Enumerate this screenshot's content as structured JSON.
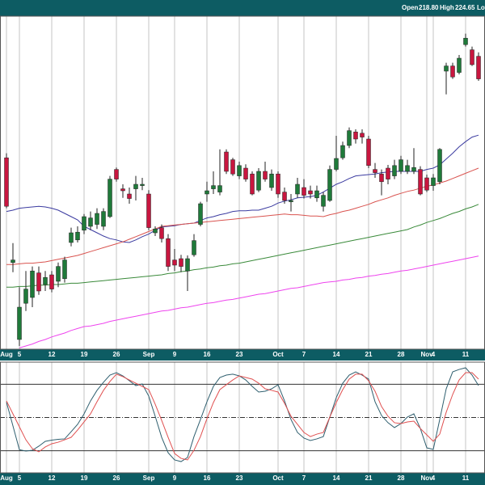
{
  "header": {
    "items": [
      {
        "label": "Open",
        "value": "218.80"
      },
      {
        "label": "High",
        "value": "224.65"
      },
      {
        "label": "Low"
      }
    ]
  },
  "chart_data": [
    {
      "type": "candlestick",
      "categories": [
        "Aug",
        null,
        "5",
        null,
        null,
        null,
        null,
        "12",
        null,
        null,
        null,
        null,
        "19",
        null,
        null,
        null,
        null,
        "26",
        null,
        null,
        null,
        null,
        "Sep",
        null,
        null,
        null,
        "9",
        null,
        null,
        null,
        null,
        "16",
        null,
        null,
        null,
        null,
        "23",
        null,
        null,
        null,
        null,
        null,
        "Oct",
        null,
        null,
        null,
        "7",
        null,
        null,
        null,
        null,
        "14",
        null,
        null,
        null,
        null,
        "21",
        null,
        null,
        null,
        null,
        "28",
        null,
        null,
        null,
        "Nov",
        "4",
        null,
        null,
        null,
        null,
        "11",
        null,
        null
      ],
      "open": [
        212.1,
        195.9,
        184.0,
        189.6,
        190.5,
        194.3,
        192.5,
        194.0,
        193.0,
        193.4,
        199.0,
        199.4,
        200.9,
        201.5,
        201.8,
        201.5,
        203.0,
        210.3,
        207.3,
        206.5,
        207.3,
        207.8,
        206.5,
        200.5,
        201.3,
        199.6,
        196.3,
        196.5,
        194.6,
        197.1,
        201.8,
        206.5,
        207.3,
        206.8,
        213.0,
        211.8,
        209.3,
        210.5,
        209.6,
        207.1,
        210.0,
        207.5,
        209.6,
        206.8,
        205.3,
        206.5,
        207.5,
        207.0,
        205.9,
        204.6,
        205.5,
        210.3,
        212.1,
        214.0,
        216.1,
        215.9,
        215.0,
        210.3,
        209.6,
        210.5,
        209.3,
        210.0,
        210.0,
        210.0,
        210.3,
        209.0,
        207.8,
        208.4,
        225.5,
        226.3,
        225.3,
        229.6,
        228.8,
        227.8
      ],
      "high": [
        212.8,
        198.9,
        192.1,
        194.6,
        195.3,
        195.3,
        194.6,
        194.6,
        195.9,
        196.8,
        201.3,
        201.5,
        203.4,
        203.8,
        204.3,
        204.3,
        209.3,
        210.6,
        208.0,
        207.5,
        209.3,
        209.0,
        207.1,
        201.5,
        201.8,
        200.3,
        198.0,
        197.1,
        197.0,
        200.3,
        205.3,
        208.4,
        210.0,
        213.4,
        213.4,
        212.1,
        211.5,
        211.1,
        210.0,
        210.5,
        211.5,
        210.3,
        210.0,
        207.5,
        206.5,
        209.0,
        208.8,
        207.8,
        207.8,
        206.8,
        210.9,
        215.5,
        214.6,
        216.8,
        216.5,
        216.5,
        215.5,
        211.3,
        210.3,
        211.0,
        211.8,
        212.4,
        211.8,
        213.6,
        210.8,
        209.5,
        209.6,
        213.6,
        226.8,
        226.8,
        228.0,
        231.3,
        229.3,
        228.4
      ],
      "low": [
        204.3,
        194.4,
        183.0,
        188.4,
        189.0,
        190.9,
        191.5,
        191.3,
        192.1,
        192.8,
        198.4,
        199.0,
        200.3,
        200.9,
        201.1,
        200.9,
        202.8,
        208.4,
        205.9,
        205.0,
        205.5,
        207.1,
        200.9,
        200.0,
        199.0,
        194.6,
        194.6,
        194.4,
        191.5,
        196.8,
        201.5,
        205.3,
        206.5,
        206.3,
        209.6,
        209.3,
        208.8,
        208.4,
        206.3,
        206.8,
        208.4,
        207.0,
        205.9,
        205.0,
        203.8,
        205.9,
        205.8,
        205.8,
        205.3,
        203.8,
        205.3,
        210.0,
        211.8,
        213.6,
        214.3,
        214.3,
        210.5,
        209.0,
        206.3,
        208.0,
        208.8,
        209.6,
        209.6,
        209.6,
        206.3,
        206.8,
        207.0,
        208.0,
        221.9,
        224.3,
        225.0,
        229.3,
        226.3,
        224.0
      ],
      "close": [
        204.6,
        196.3,
        189.0,
        191.8,
        194.6,
        191.5,
        193.6,
        191.8,
        195.3,
        196.3,
        200.5,
        200.6,
        203.0,
        202.8,
        203.5,
        203.8,
        208.8,
        208.8,
        207.0,
        205.8,
        208.0,
        208.0,
        201.3,
        201.1,
        199.6,
        195.3,
        195.5,
        195.3,
        196.5,
        199.3,
        205.0,
        207.0,
        207.8,
        207.8,
        210.0,
        209.6,
        210.9,
        208.8,
        206.5,
        210.0,
        208.8,
        209.6,
        206.5,
        205.5,
        205.5,
        208.0,
        206.3,
        206.5,
        207.0,
        206.3,
        210.3,
        212.0,
        214.0,
        216.3,
        215.0,
        215.3,
        210.9,
        209.8,
        208.4,
        208.8,
        210.9,
        211.8,
        210.9,
        210.6,
        206.5,
        207.1,
        209.0,
        213.4,
        226.3,
        224.6,
        227.5,
        230.6,
        226.5,
        224.3
      ],
      "up_color": "#1f7a3a",
      "down_color": "#c8163f",
      "series": [
        {
          "color": "#3b3ba0",
          "values": [
            203.8,
            204.0,
            204.3,
            204.4,
            204.5,
            204.6,
            204.5,
            204.3,
            204.0,
            203.5,
            203.0,
            202.5,
            201.5,
            201.0,
            200.5,
            200.0,
            199.6,
            199.4,
            199.1,
            199.0,
            199.4,
            199.9,
            200.3,
            200.9,
            201.4,
            201.5,
            201.6,
            201.8,
            201.9,
            202.0,
            202.4,
            202.8,
            203.0,
            203.3,
            203.5,
            203.8,
            203.9,
            203.9,
            204.0,
            204.0,
            204.3,
            204.6,
            205.1,
            205.4,
            205.6,
            205.9,
            206.0,
            206.1,
            206.3,
            206.8,
            207.4,
            208.0,
            208.4,
            208.9,
            209.3,
            209.4,
            209.5,
            209.6,
            209.8,
            209.9,
            210.0,
            210.0,
            210.0,
            210.0,
            210.0,
            210.3,
            210.5,
            211.0,
            211.9,
            212.8,
            213.8,
            214.6,
            215.3,
            215.6
          ]
        },
        {
          "color": "#d9534f",
          "values": [
            195.6,
            195.6,
            195.7,
            195.8,
            195.8,
            195.9,
            196.0,
            196.2,
            196.4,
            196.6,
            196.8,
            197.0,
            197.3,
            197.6,
            197.9,
            198.2,
            198.5,
            198.8,
            199.1,
            199.5,
            199.9,
            200.3,
            200.7,
            201.1,
            201.5,
            201.6,
            201.7,
            201.8,
            201.9,
            202.0,
            202.1,
            202.2,
            202.3,
            202.4,
            202.5,
            202.6,
            202.7,
            202.8,
            202.9,
            203.0,
            203.1,
            203.2,
            203.3,
            203.4,
            203.3,
            203.3,
            203.2,
            203.1,
            203.1,
            203.0,
            203.3,
            203.5,
            203.8,
            204.0,
            204.3,
            204.6,
            204.9,
            205.3,
            205.6,
            205.9,
            206.3,
            206.6,
            206.9,
            207.1,
            207.4,
            207.7,
            207.9,
            208.2,
            208.5,
            208.9,
            209.3,
            209.7,
            210.1,
            210.5
          ]
        },
        {
          "color": "#3a8a3a",
          "values": [
            192.1,
            192.1,
            192.2,
            192.2,
            192.3,
            192.4,
            192.4,
            192.5,
            192.5,
            192.6,
            192.7,
            192.7,
            192.8,
            192.9,
            193.0,
            193.1,
            193.2,
            193.3,
            193.4,
            193.5,
            193.6,
            193.7,
            193.8,
            193.9,
            194.0,
            194.2,
            194.3,
            194.5,
            194.6,
            194.8,
            194.9,
            195.1,
            195.2,
            195.4,
            195.5,
            195.7,
            195.8,
            196.0,
            196.2,
            196.4,
            196.6,
            196.8,
            197.0,
            197.2,
            197.4,
            197.6,
            197.8,
            198.0,
            198.2,
            198.4,
            198.6,
            198.8,
            199.0,
            199.2,
            199.4,
            199.6,
            199.8,
            200.0,
            200.2,
            200.4,
            200.6,
            200.8,
            201.0,
            201.4,
            201.7,
            202.1,
            202.4,
            202.7,
            203.1,
            203.5,
            203.8,
            204.2,
            204.5,
            204.9
          ]
        },
        {
          "color": "#ee44ee",
          "values": [
            null,
            null,
            182.7,
            183.0,
            183.3,
            183.7,
            184.0,
            184.4,
            184.7,
            185.0,
            185.4,
            185.7,
            186.0,
            186.1,
            186.3,
            186.5,
            186.8,
            187.0,
            187.2,
            187.4,
            187.6,
            187.8,
            188.0,
            188.2,
            188.4,
            188.5,
            188.7,
            188.9,
            189.0,
            189.2,
            189.4,
            189.6,
            189.7,
            189.9,
            190.1,
            190.2,
            190.4,
            190.6,
            190.8,
            191.0,
            191.1,
            191.3,
            191.5,
            191.7,
            191.9,
            192.0,
            192.2,
            192.4,
            192.6,
            192.8,
            192.9,
            193.0,
            193.2,
            193.3,
            193.5,
            193.6,
            193.8,
            193.9,
            194.1,
            194.2,
            194.4,
            194.6,
            194.7,
            194.9,
            195.1,
            195.3,
            195.5,
            195.7,
            195.9,
            196.1,
            196.3,
            196.5,
            196.7,
            196.9
          ]
        }
      ],
      "ylim": [
        182.5,
        234
      ],
      "grid": true
    },
    {
      "type": "line",
      "series": [
        {
          "color": "#2f5f6f",
          "values": [
            63.9,
            42.4,
            20.9,
            19.7,
            20.4,
            24.1,
            28.5,
            29.6,
            30.3,
            30.7,
            37.2,
            43.8,
            53.3,
            65.0,
            74.5,
            81.8,
            88.3,
            90.5,
            87.6,
            83.2,
            78.8,
            80.3,
            69.3,
            51.1,
            32.1,
            18.2,
            11.7,
            10.2,
            13.9,
            32.8,
            48.2,
            64.2,
            78.1,
            86.1,
            88.3,
            89.1,
            87.6,
            83.9,
            78.1,
            73.0,
            73.7,
            75.9,
            79.6,
            65.0,
            48.2,
            36.5,
            31.4,
            29.2,
            30.7,
            32.8,
            50.4,
            67.9,
            81.0,
            88.3,
            91.2,
            88.3,
            84.7,
            64.2,
            51.8,
            45.3,
            40.9,
            44.5,
            50.4,
            53.3,
            40.1,
            22.6,
            21.2,
            48.2,
            75.9,
            91.2,
            93.4,
            94.9,
            88.3,
            78.8
          ]
        },
        {
          "color": "#e05050",
          "values": [
            65.0,
            53.3,
            41.6,
            29.9,
            21.9,
            19.0,
            23.4,
            26.3,
            27.7,
            29.9,
            32.1,
            38.7,
            46.0,
            53.3,
            64.2,
            74.5,
            82.5,
            89.1,
            86.9,
            83.9,
            81.0,
            78.1,
            75.2,
            62.0,
            47.4,
            32.1,
            17.5,
            13.1,
            11.7,
            20.4,
            32.8,
            48.9,
            63.5,
            75.2,
            79.6,
            83.9,
            87.6,
            86.1,
            84.7,
            81.0,
            75.9,
            74.5,
            73.0,
            62.8,
            51.1,
            43.8,
            36.5,
            32.8,
            35.0,
            36.5,
            50.4,
            63.5,
            75.2,
            84.7,
            89.1,
            89.1,
            83.2,
            73.7,
            59.9,
            51.1,
            45.3,
            44.5,
            46.0,
            46.7,
            40.1,
            34.3,
            28.5,
            35.0,
            54.7,
            70.8,
            83.9,
            90.5,
            90.5,
            84.7
          ]
        }
      ],
      "ylim": [
        0,
        100
      ],
      "hlines": [
        80,
        50,
        20
      ],
      "hline_dash": [
        false,
        true,
        false
      ],
      "grid": true
    }
  ]
}
